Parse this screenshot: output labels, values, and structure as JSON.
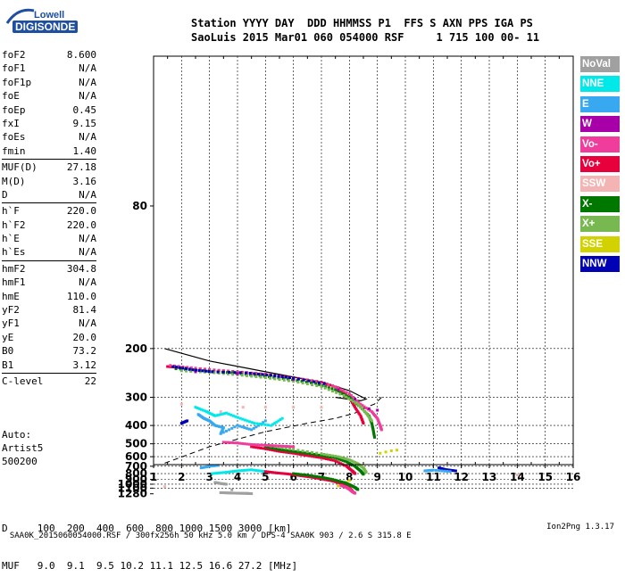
{
  "logo": {
    "line1": "Lowell",
    "line2": "DIGISONDE"
  },
  "header": {
    "line1": "Station YYYY DAY  DDD HHMMSS P1  FFS S AXN PPS IGA PS",
    "line2": "SaoLuis 2015 Mar01 060 054000 RSF     1 715 100 00- 11"
  },
  "params_group1": [
    {
      "name": "foF2",
      "value": "8.600"
    },
    {
      "name": "foF1",
      "value": "N/A"
    },
    {
      "name": "foF1p",
      "value": "N/A"
    },
    {
      "name": "foE",
      "value": "N/A"
    },
    {
      "name": "foEp",
      "value": "0.45"
    },
    {
      "name": "fxI",
      "value": "9.15"
    },
    {
      "name": "foEs",
      "value": "N/A"
    },
    {
      "name": "fmin",
      "value": "1.40"
    }
  ],
  "params_group2": [
    {
      "name": "MUF(D)",
      "value": "27.18"
    },
    {
      "name": "M(D)",
      "value": "3.16"
    },
    {
      "name": "D",
      "value": "N/A"
    }
  ],
  "params_group3": [
    {
      "name": "h`F",
      "value": "220.0"
    },
    {
      "name": "h`F2",
      "value": "220.0"
    },
    {
      "name": "h`E",
      "value": "N/A"
    },
    {
      "name": "h`Es",
      "value": "N/A"
    }
  ],
  "params_group4": [
    {
      "name": "hmF2",
      "value": "304.8"
    },
    {
      "name": "hmF1",
      "value": "N/A"
    },
    {
      "name": "hmE",
      "value": "110.0"
    },
    {
      "name": "yF2",
      "value": "81.4"
    },
    {
      "name": "yF1",
      "value": "N/A"
    },
    {
      "name": "yE",
      "value": "20.0"
    },
    {
      "name": "B0",
      "value": "73.2"
    },
    {
      "name": "B1",
      "value": "3.12"
    }
  ],
  "params_group5": [
    {
      "name": "C-level",
      "value": "22"
    }
  ],
  "auto": {
    "line1": "Auto:",
    "line2": "Artist5",
    "line3": "500200"
  },
  "legend": [
    {
      "label": "NoVal",
      "color": "#a0a0a0"
    },
    {
      "label": "NNE",
      "color": "#00e8e8"
    },
    {
      "label": "E",
      "color": "#38a8f0"
    },
    {
      "label": "W",
      "color": "#a800a8"
    },
    {
      "label": "Vo-",
      "color": "#f03c9a"
    },
    {
      "label": "Vo+",
      "color": "#e8003c"
    },
    {
      "label": "SSW",
      "color": "#f4b4b4"
    },
    {
      "label": "X-",
      "color": "#007800"
    },
    {
      "label": "X+",
      "color": "#78b850"
    },
    {
      "label": "SSE",
      "color": "#d2d200"
    },
    {
      "label": "NNW",
      "color": "#0000b4"
    }
  ],
  "bottom": {
    "d_line": "D     100  200  400  600  800 1000 1500 3000 [km]",
    "muf_line": "MUF   9.0  9.1  9.5 10.2 11.1 12.5 16.6 27.2 [MHz]"
  },
  "footer": {
    "left": "SAA0K_2015060054000.RSF / 300fx256h 50 kHz 5.0 km / DPS-4 SAA0K 903 / 2.6 S 315.8 E",
    "right": "Ion2Png 1.3.17"
  },
  "chart_data": {
    "type": "scatter",
    "x_ticks": [
      "1",
      "2",
      "3",
      "4",
      "5",
      "6",
      "7",
      "8",
      "9",
      "10",
      "11",
      "12",
      "13",
      "14",
      "15",
      "16"
    ],
    "y_ticks": [
      "80",
      "200",
      "300",
      "400",
      "500",
      "600",
      "700",
      "800",
      "900",
      "1000",
      "1100",
      "1280"
    ],
    "xlim": [
      1,
      16
    ],
    "y_axis": "reciprocal",
    "ylim": [
      80,
      1280
    ],
    "grid": true,
    "o_trace_profile": [
      [
        1.4,
        200
      ],
      [
        3,
        220
      ],
      [
        5,
        240
      ],
      [
        7,
        262
      ],
      [
        8,
        282
      ],
      [
        8.6,
        305
      ],
      [
        8.4,
        310
      ],
      [
        8,
        306
      ],
      [
        7.5,
        300
      ]
    ],
    "x_trace_profile": [
      [
        1.4,
        665
      ],
      [
        3,
        520
      ],
      [
        5,
        430
      ],
      [
        6.5,
        390
      ],
      [
        7.5,
        370
      ],
      [
        8.2,
        350
      ],
      [
        8.6,
        330
      ],
      [
        8.9,
        320
      ],
      [
        9.15,
        300
      ]
    ],
    "series": [
      {
        "name": "Vo+",
        "color": "#e8003c",
        "points": [
          [
            1.5,
            230
          ],
          [
            2,
            232
          ],
          [
            3,
            236
          ],
          [
            4,
            240
          ],
          [
            5,
            245
          ],
          [
            6,
            252
          ],
          [
            7,
            262
          ],
          [
            7.6,
            275
          ],
          [
            8,
            300
          ],
          [
            8.2,
            330
          ],
          [
            8.4,
            360
          ],
          [
            8.5,
            390
          ]
        ]
      },
      {
        "name": "Vo-",
        "color": "#f03c9a",
        "points": [
          [
            1.6,
            228
          ],
          [
            2.5,
            233
          ],
          [
            3.5,
            238
          ],
          [
            4.5,
            244
          ],
          [
            5.5,
            250
          ],
          [
            6.5,
            258
          ],
          [
            7.4,
            270
          ],
          [
            8,
            290
          ],
          [
            8.4,
            320
          ],
          [
            8.8,
            345
          ],
          [
            9,
            370
          ],
          [
            9.1,
            400
          ],
          [
            9.15,
            420
          ]
        ]
      },
      {
        "name": "X-",
        "color": "#007800",
        "points": [
          [
            1.8,
            234
          ],
          [
            2.8,
            238
          ],
          [
            3.8,
            242
          ],
          [
            4.8,
            248
          ],
          [
            5.8,
            255
          ],
          [
            6.8,
            265
          ],
          [
            7.5,
            280
          ],
          [
            8,
            300
          ],
          [
            8.4,
            330
          ],
          [
            8.7,
            360
          ],
          [
            8.8,
            390
          ],
          [
            8.85,
            420
          ],
          [
            8.9,
            460
          ]
        ]
      },
      {
        "name": "X+",
        "color": "#78b850",
        "points": [
          [
            2,
            238
          ],
          [
            3,
            241
          ],
          [
            4,
            246
          ],
          [
            5,
            252
          ],
          [
            6,
            260
          ],
          [
            7,
            272
          ],
          [
            7.8,
            295
          ],
          [
            8.3,
            320
          ],
          [
            8.6,
            350
          ],
          [
            8.8,
            380
          ]
        ]
      },
      {
        "name": "W",
        "color": "#a800a8",
        "points": [
          [
            2.5,
            240
          ],
          [
            4,
            244
          ],
          [
            6,
            256
          ],
          [
            7.6,
            280
          ],
          [
            8.2,
            305
          ],
          [
            8.7,
            335
          ],
          [
            9,
            340
          ]
        ]
      },
      {
        "name": "NNW",
        "color": "#0000b4",
        "points": [
          [
            1.7,
            230
          ],
          [
            2.4,
            236
          ],
          [
            3.1,
            240
          ],
          [
            4.3,
            242
          ],
          [
            5.2,
            247
          ],
          [
            6,
            253
          ],
          [
            7.1,
            265
          ],
          [
            2,
            390
          ],
          [
            2.2,
            380
          ],
          [
            11.2,
            720
          ],
          [
            11.4,
            740
          ],
          [
            11.8,
            760
          ]
        ]
      },
      {
        "name": "E",
        "color": "#38a8f0",
        "points": [
          [
            2.6,
            355
          ],
          [
            2.8,
            370
          ],
          [
            3,
            380
          ],
          [
            3.2,
            400
          ],
          [
            3.5,
            410
          ],
          [
            3.4,
            440
          ],
          [
            4,
            400
          ],
          [
            4.5,
            420
          ],
          [
            5,
            380
          ],
          [
            2.7,
            720
          ],
          [
            3,
            700
          ],
          [
            3.3,
            690
          ],
          [
            10.7,
            760
          ],
          [
            11,
            750
          ],
          [
            11.6,
            770
          ]
        ]
      },
      {
        "name": "NNE",
        "color": "#00e8e8",
        "points": [
          [
            2.5,
            330
          ],
          [
            2.9,
            345
          ],
          [
            3.2,
            360
          ],
          [
            3.6,
            350
          ],
          [
            4.1,
            370
          ],
          [
            4.6,
            390
          ],
          [
            5.2,
            400
          ],
          [
            5.6,
            370
          ],
          [
            3.1,
            800
          ],
          [
            3.6,
            780
          ],
          [
            4,
            760
          ],
          [
            4.5,
            745
          ],
          [
            5,
            770
          ],
          [
            5.4,
            790
          ]
        ]
      },
      {
        "name": "SSE",
        "color": "#d2d200",
        "points": [
          [
            9.1,
            570
          ],
          [
            9.3,
            560
          ],
          [
            9.5,
            550
          ],
          [
            9.7,
            545
          ],
          [
            7.6,
            1040
          ],
          [
            7.7,
            1000
          ],
          [
            7.9,
            960
          ],
          [
            8,
            920
          ]
        ]
      },
      {
        "name": "SSW",
        "color": "#f4b4b4",
        "points": [
          [
            2,
            320
          ],
          [
            3.4,
            345
          ],
          [
            4.2,
            330
          ],
          [
            5,
            330
          ],
          [
            6,
            330
          ],
          [
            7,
            330
          ],
          [
            14,
            820
          ],
          [
            1.4,
            1060
          ]
        ]
      },
      {
        "name": "NoVal",
        "color": "#a0a0a0",
        "points": [
          [
            3.4,
            1240
          ],
          [
            3.7,
            1250
          ],
          [
            4,
            1260
          ],
          [
            4.3,
            1265
          ],
          [
            4.5,
            1275
          ],
          [
            3.8,
            1145
          ],
          [
            3.2,
            960
          ],
          [
            3.4,
            985
          ],
          [
            3.6,
            1000
          ]
        ]
      }
    ],
    "upper_traces": [
      {
        "name": "Vo+",
        "color": "#e8003c",
        "points": [
          [
            4.5,
            520
          ],
          [
            5,
            535
          ],
          [
            5.5,
            555
          ],
          [
            6,
            570
          ],
          [
            6.5,
            590
          ],
          [
            7,
            610
          ],
          [
            7.5,
            640
          ],
          [
            7.9,
            700
          ],
          [
            8.1,
            760
          ],
          [
            8.2,
            800
          ]
        ]
      },
      {
        "name": "X-",
        "color": "#007800",
        "points": [
          [
            5,
            520
          ],
          [
            5.5,
            540
          ],
          [
            6,
            555
          ],
          [
            6.5,
            570
          ],
          [
            7,
            590
          ],
          [
            7.5,
            610
          ],
          [
            7.9,
            650
          ],
          [
            8.2,
            700
          ],
          [
            8.4,
            760
          ],
          [
            8.5,
            810
          ]
        ]
      },
      {
        "name": "X+",
        "color": "#78b850",
        "points": [
          [
            5.2,
            515
          ],
          [
            6,
            540
          ],
          [
            7,
            575
          ],
          [
            7.6,
            600
          ],
          [
            8,
            630
          ],
          [
            8.3,
            670
          ],
          [
            8.5,
            720
          ],
          [
            8.6,
            780
          ]
        ]
      },
      {
        "name": "Vo-",
        "color": "#f03c9a",
        "points": [
          [
            3.5,
            490
          ],
          [
            4,
            495
          ],
          [
            4.5,
            505
          ],
          [
            5,
            510
          ],
          [
            5.5,
            515
          ],
          [
            6,
            520
          ]
        ]
      },
      {
        "name": "Vo+",
        "color": "#e8003c",
        "points": [
          [
            5,
            770
          ],
          [
            5.4,
            790
          ],
          [
            5.8,
            805
          ],
          [
            6.2,
            830
          ],
          [
            6.6,
            855
          ],
          [
            7,
            890
          ],
          [
            7.4,
            930
          ],
          [
            7.7,
            980
          ],
          [
            7.9,
            1040
          ],
          [
            8,
            1100
          ],
          [
            8.1,
            1180
          ]
        ]
      },
      {
        "name": "X-",
        "color": "#007800",
        "points": [
          [
            6,
            800
          ],
          [
            6.5,
            825
          ],
          [
            7,
            860
          ],
          [
            7.4,
            900
          ],
          [
            7.8,
            960
          ],
          [
            8,
            1010
          ],
          [
            8.2,
            1080
          ],
          [
            8.3,
            1140
          ]
        ]
      },
      {
        "name": "Vo-",
        "color": "#f03c9a",
        "points": [
          [
            7.7,
            1030
          ],
          [
            7.9,
            1080
          ],
          [
            8,
            1130
          ],
          [
            8.1,
            1200
          ],
          [
            8.2,
            1260
          ]
        ]
      }
    ]
  }
}
